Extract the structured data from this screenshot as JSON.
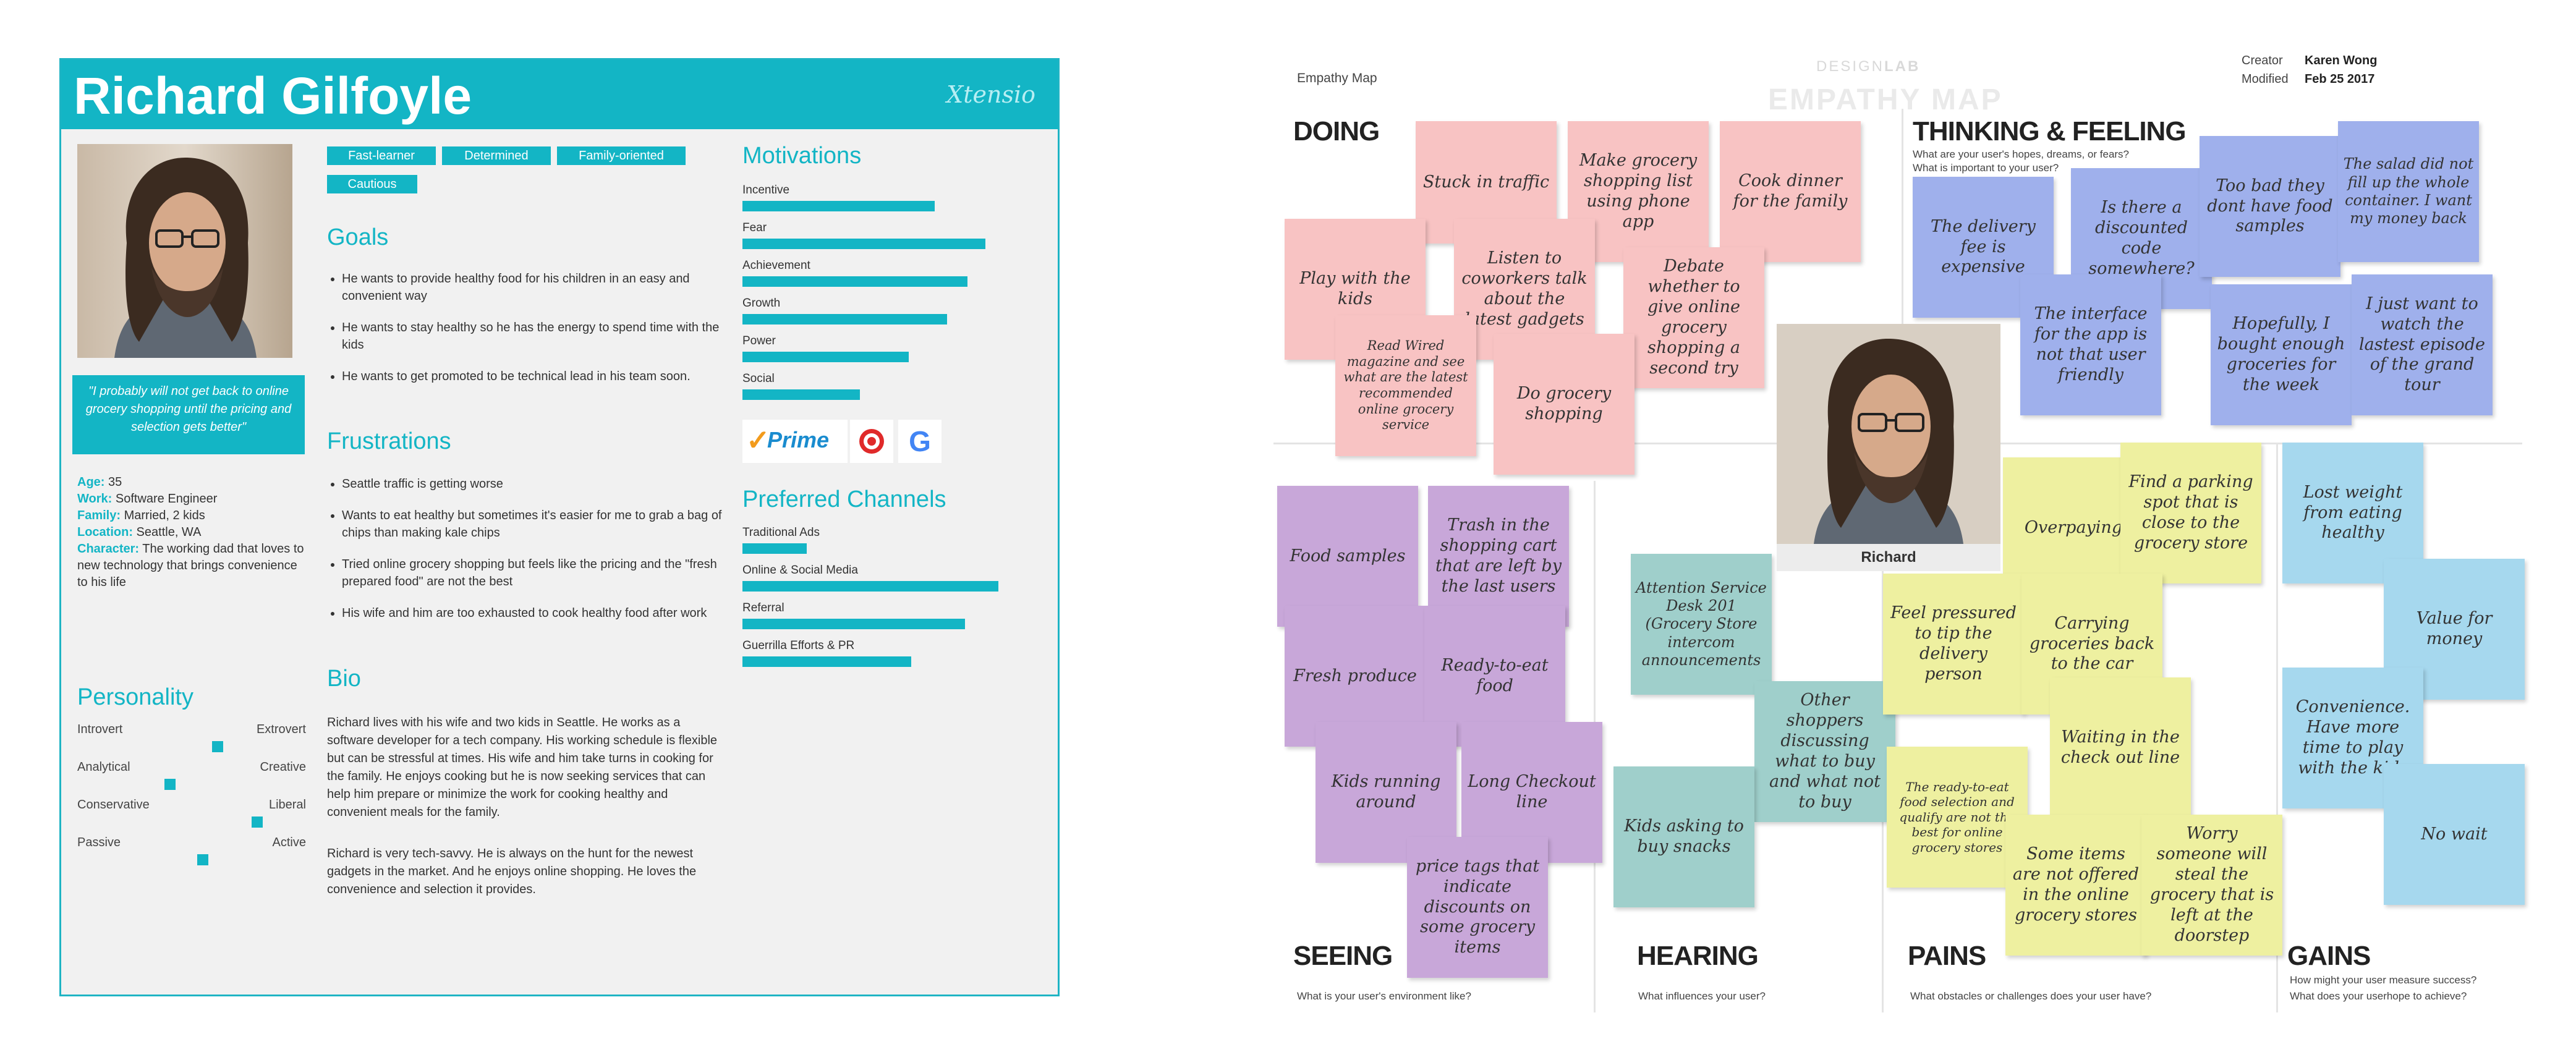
{
  "persona": {
    "name": "Richard Gilfoyle",
    "brand": "Xtensio",
    "quote": "\"I probably will not get back to online grocery shopping until the pricing and selection gets better\"",
    "facts": [
      {
        "key": "Age:",
        "value": " 35"
      },
      {
        "key": "Work:",
        "value": " Software Engineer"
      },
      {
        "key": "Family:",
        "value": " Married, 2 kids"
      },
      {
        "key": "Location:",
        "value": " Seattle, WA"
      },
      {
        "key": "Character:",
        "value": " The working dad that loves to new technology that brings convenience to his life"
      }
    ],
    "personality_title": "Personality",
    "personality": [
      {
        "left": "Introvert",
        "right": "Extrovert",
        "level": 0.62
      },
      {
        "left": "Analytical",
        "right": "Creative",
        "level": 0.4
      },
      {
        "left": "Conservative",
        "right": "Liberal",
        "level": 0.8
      },
      {
        "left": "Passive",
        "right": "Active",
        "level": 0.55
      }
    ],
    "tags": [
      "Fast-learner",
      "Determined",
      "Family-oriented",
      "Cautious"
    ],
    "goals_title": "Goals",
    "goals": [
      "He wants to provide healthy food for his children in an easy and convenient way",
      "He wants to stay healthy so he has the energy to spend time with the kids",
      "He wants to get promoted to be technical lead in his team soon."
    ],
    "frustrations_title": "Frustrations",
    "frustrations": [
      "Seattle traffic is getting worse",
      "Wants to eat healthy but sometimes it's easier for me to grab a bag of chips than making kale chips",
      "Tried online grocery shopping but feels like the pricing and the \"fresh prepared food\" are not the best",
      "His wife and him are too exhausted to cook healthy food after work"
    ],
    "bio_title": "Bio",
    "bio": [
      "Richard lives with his wife and two kids in Seattle. He works as a software developer for a tech company. His working schedule is flexible but can be stressful at times. His wife and him take turns in cooking for the family. He enjoys cooking but he is now seeking services that can help him prepare or minimize the work for cooking healthy and convenient meals for the family.",
      "Richard is very tech-savvy. He is always on the hunt for the newest gadgets in the market. And he enjoys online shopping. He loves the convenience and selection it provides."
    ],
    "motivations_title": "Motivations",
    "motivations": [
      {
        "label": "Incentive",
        "value": 0.75
      },
      {
        "label": "Fear",
        "value": 0.95
      },
      {
        "label": "Achievement",
        "value": 0.88
      },
      {
        "label": "Growth",
        "value": 0.8
      },
      {
        "label": "Power",
        "value": 0.65
      },
      {
        "label": "Social",
        "value": 0.46
      }
    ],
    "brands": {
      "prime": "Prime",
      "prime_check": "✓",
      "google": "G"
    },
    "channels_title": "Preferred Channels",
    "channels": [
      {
        "label": "Traditional Ads",
        "value": 0.25
      },
      {
        "label": "Online & Social Media",
        "value": 1.0
      },
      {
        "label": "Referral",
        "value": 0.87
      },
      {
        "label": "Guerrilla Efforts & PR",
        "value": 0.66
      }
    ],
    "colors": {
      "accent": "#13b5c5"
    }
  },
  "empathy": {
    "title": "Empathy Map",
    "logo_light": "DESIGN",
    "logo_bold": "LAB",
    "watermark": "EMPATHY MAP",
    "creator_label": "Creator",
    "creator": "Karen Wong",
    "modified_label": "Modified",
    "modified": "Feb 25 2017",
    "center_label": "Richard",
    "quadrants": {
      "doing": {
        "title": "DOING"
      },
      "thinking": {
        "title": "THINKING & FEELING",
        "sub1": "What are your user's hopes, dreams, or fears?",
        "sub2": "What is important to your user?"
      },
      "seeing": {
        "title": "SEEING",
        "sub1": "What is your user's environment like?"
      },
      "hearing": {
        "title": "HEARING",
        "sub1": "What influences your user?"
      },
      "pains": {
        "title": "PAINS",
        "sub1": "What obstacles or challenges does your user have?"
      },
      "gains": {
        "title": "GAINS",
        "sub1": "How might your user measure success?",
        "sub2": "What does your userhope to achieve?"
      }
    },
    "notes": {
      "doing": [
        "Stuck in traffic",
        "Make grocery shopping list using phone app",
        "Cook dinner for the family",
        "Play with the kids",
        "Listen to coworkers talk about the latest gadgets",
        "Debate whether to give online grocery shopping a second try",
        "Read Wired magazine and see what are the latest recommended online grocery service",
        "Do grocery shopping"
      ],
      "thinking": [
        "The delivery fee is expensive",
        "Is there a discounted code somewhere?",
        "Too bad they dont have food samples",
        "The salad did not fill up the whole container. I want my money back",
        "The interface for the app is not that user friendly",
        "Hopefully, I bought enough groceries for the week",
        "I just want to watch the lastest episode of the grand tour"
      ],
      "seeing": [
        "Food samples",
        "Trash in the shopping cart that are left by the last users",
        "Fresh produce",
        "Ready-to-eat food",
        "Kids running around",
        "Long Checkout line",
        "price tags that indicate discounts on some grocery items"
      ],
      "hearing": [
        "Attention Service Desk 201 (Grocery Store intercom announcements",
        "Other shoppers discussing what to buy and what not to buy",
        "Kids asking to buy snacks"
      ],
      "pains": [
        "Overpaying",
        "Find a parking spot that is close to the grocery store",
        "Feel pressured to tip the delivery person",
        "Carrying groceries back to the car",
        "Waiting in the check out line",
        "The ready-to-eat food selection and qualify are not the best for online grocery stores",
        "Some items are not offered in the online grocery stores",
        "Worry someone will steal the grocery that is left at the doorstep"
      ],
      "gains": [
        "Lost weight from eating healthy",
        "Value for money",
        "Convenience. Have more time to play with the kids",
        "No wait"
      ]
    }
  }
}
